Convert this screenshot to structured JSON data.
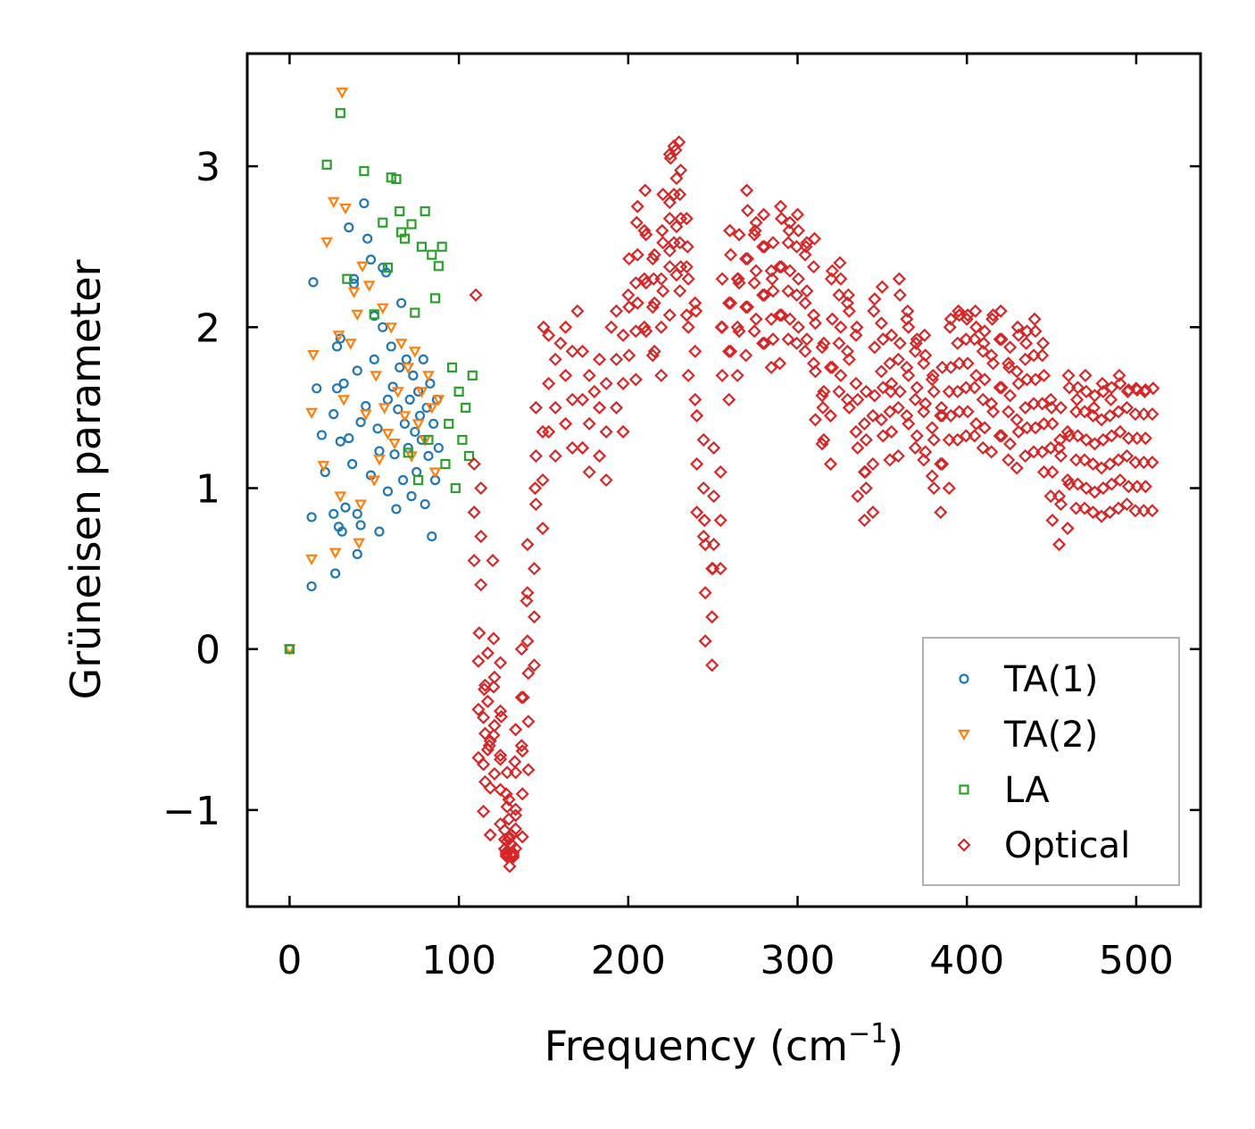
{
  "chart_data": {
    "type": "scatter",
    "xlabel": "Frequency (cm",
    "xlabel_sup": "−1",
    "xlabel_end": ")",
    "ylabel": "Grüneisen parameter",
    "xlim": [
      -25,
      538
    ],
    "ylim": [
      -1.6,
      3.7
    ],
    "xticks": [
      0,
      100,
      200,
      300,
      400,
      500
    ],
    "yticks": [
      -1,
      0,
      1,
      2,
      3
    ],
    "xtick_labels": [
      "0",
      "100",
      "200",
      "300",
      "400",
      "500"
    ],
    "ytick_labels": [
      "−1",
      "0",
      "1",
      "2",
      "3"
    ],
    "legend_position": "lower-right",
    "series": [
      {
        "name": "TA(1)",
        "marker": "circle",
        "color": "#1f77b4",
        "points": [
          [
            0,
            0
          ],
          [
            13,
            0.39
          ],
          [
            13,
            0.82
          ],
          [
            14,
            2.28
          ],
          [
            16,
            1.62
          ],
          [
            19,
            1.33
          ],
          [
            21,
            1.1
          ],
          [
            26,
            0.84
          ],
          [
            26,
            1.46
          ],
          [
            27,
            0.47
          ],
          [
            28,
            1.88
          ],
          [
            28,
            1.62
          ],
          [
            29,
            0.76
          ],
          [
            30,
            1.29
          ],
          [
            30,
            1.93
          ],
          [
            31,
            0.73
          ],
          [
            32,
            1.65
          ],
          [
            33,
            0.88
          ],
          [
            35,
            2.62
          ],
          [
            35,
            1.31
          ],
          [
            37,
            1.15
          ],
          [
            38,
            2.3
          ],
          [
            38,
            2.27
          ],
          [
            40,
            0.84
          ],
          [
            40,
            0.59
          ],
          [
            40,
            1.73
          ],
          [
            42,
            1.41
          ],
          [
            42,
            0.77
          ],
          [
            44,
            2.77
          ],
          [
            45,
            1.51
          ],
          [
            46,
            2.55
          ],
          [
            48,
            2.42
          ],
          [
            48,
            1.08
          ],
          [
            50,
            1.8
          ],
          [
            50,
            2.07
          ],
          [
            52,
            1.37
          ],
          [
            53,
            1.23
          ],
          [
            53,
            0.73
          ],
          [
            55,
            2.0
          ],
          [
            55,
            2.37
          ],
          [
            57,
            2.34
          ],
          [
            58,
            1.55
          ],
          [
            58,
            0.98
          ],
          [
            60,
            1.88
          ],
          [
            61,
            1.63
          ],
          [
            62,
            1.21
          ],
          [
            63,
            0.87
          ],
          [
            64,
            1.49
          ],
          [
            65,
            1.75
          ],
          [
            66,
            2.15
          ],
          [
            67,
            1.05
          ],
          [
            68,
            1.4
          ],
          [
            69,
            1.8
          ],
          [
            70,
            1.25
          ],
          [
            71,
            1.55
          ],
          [
            72,
            0.95
          ],
          [
            73,
            1.7
          ],
          [
            74,
            1.35
          ],
          [
            75,
            1.1
          ],
          [
            76,
            1.6
          ],
          [
            77,
            1.45
          ],
          [
            78,
            1.3
          ],
          [
            79,
            1.8
          ],
          [
            80,
            0.9
          ],
          [
            81,
            1.5
          ],
          [
            82,
            1.2
          ],
          [
            83,
            1.65
          ],
          [
            84,
            0.7
          ],
          [
            85,
            1.4
          ],
          [
            86,
            1.05
          ],
          [
            87,
            1.55
          ],
          [
            88,
            1.25
          ]
        ]
      },
      {
        "name": "TA(2)",
        "marker": "triangle",
        "color": "#ff7f0e",
        "points": [
          [
            0,
            0
          ],
          [
            13,
            0.56
          ],
          [
            13,
            1.47
          ],
          [
            14,
            1.83
          ],
          [
            20,
            1.14
          ],
          [
            22,
            2.53
          ],
          [
            26,
            2.78
          ],
          [
            27,
            0.6
          ],
          [
            29,
            1.95
          ],
          [
            30,
            0.95
          ],
          [
            31,
            3.46
          ],
          [
            32,
            1.55
          ],
          [
            33,
            2.74
          ],
          [
            36,
            1.9
          ],
          [
            38,
            2.22
          ],
          [
            40,
            2.08
          ],
          [
            41,
            0.66
          ],
          [
            42,
            0.9
          ],
          [
            43,
            2.38
          ],
          [
            45,
            1.46
          ],
          [
            47,
            2.26
          ],
          [
            50,
            1.05
          ],
          [
            51,
            1.7
          ],
          [
            53,
            1.18
          ],
          [
            55,
            2.12
          ],
          [
            56,
            1.5
          ],
          [
            58,
            1.34
          ],
          [
            60,
            2.0
          ],
          [
            62,
            1.28
          ],
          [
            64,
            1.6
          ],
          [
            66,
            1.9
          ],
          [
            68,
            1.45
          ],
          [
            70,
            1.75
          ],
          [
            72,
            1.2
          ],
          [
            74,
            1.85
          ],
          [
            76,
            1.4
          ],
          [
            78,
            1.6
          ],
          [
            80,
            1.3
          ],
          [
            82,
            1.7
          ],
          [
            84,
            1.5
          ],
          [
            86,
            1.1
          ],
          [
            88,
            1.55
          ]
        ]
      },
      {
        "name": "LA",
        "marker": "square",
        "color": "#2ca02c",
        "points": [
          [
            0,
            0
          ],
          [
            22,
            3.01
          ],
          [
            30,
            3.33
          ],
          [
            34,
            2.3
          ],
          [
            44,
            2.97
          ],
          [
            50,
            2.08
          ],
          [
            55,
            2.65
          ],
          [
            58,
            2.37
          ],
          [
            60,
            2.93
          ],
          [
            63,
            2.92
          ],
          [
            65,
            2.72
          ],
          [
            66,
            2.59
          ],
          [
            68,
            2.55
          ],
          [
            70,
            1.22
          ],
          [
            72,
            2.64
          ],
          [
            74,
            2.09
          ],
          [
            76,
            1.05
          ],
          [
            78,
            2.5
          ],
          [
            80,
            2.72
          ],
          [
            82,
            1.3
          ],
          [
            84,
            2.45
          ],
          [
            86,
            2.18
          ],
          [
            88,
            2.38
          ],
          [
            90,
            2.5
          ],
          [
            92,
            1.15
          ],
          [
            94,
            1.4
          ],
          [
            96,
            1.75
          ],
          [
            98,
            1.0
          ],
          [
            100,
            1.6
          ],
          [
            102,
            1.3
          ],
          [
            104,
            1.5
          ],
          [
            106,
            1.2
          ],
          [
            108,
            1.7
          ]
        ]
      },
      {
        "name": "Optical",
        "marker": "diamond",
        "color": "#d62728",
        "points": [
          [
            110,
            2.2
          ],
          [
            112,
            0.1
          ],
          [
            115,
            -0.25
          ],
          [
            118,
            -0.6
          ],
          [
            120,
            0.55
          ],
          [
            125,
            -0.42
          ],
          [
            128,
            -0.9
          ],
          [
            130,
            -1.35
          ],
          [
            130,
            -1.17
          ],
          [
            133,
            -0.7
          ],
          [
            138,
            -0.3
          ],
          [
            140,
            0.3
          ],
          [
            145,
            1.0
          ],
          [
            150,
            2.0
          ],
          [
            160,
            1.9
          ],
          [
            170,
            2.1
          ],
          [
            180,
            1.6
          ],
          [
            190,
            2.0
          ],
          [
            200,
            2.2
          ],
          [
            205,
            2.65
          ],
          [
            210,
            2.85
          ],
          [
            215,
            2.3
          ],
          [
            220,
            2.6
          ],
          [
            225,
            3.05
          ],
          [
            228,
            3.1
          ],
          [
            230,
            3.15
          ],
          [
            235,
            2.5
          ],
          [
            240,
            2.1
          ],
          [
            245,
            0.8
          ],
          [
            250,
            0.5
          ],
          [
            255,
            2.0
          ],
          [
            260,
            2.6
          ],
          [
            265,
            2.3
          ],
          [
            270,
            2.85
          ],
          [
            275,
            2.6
          ],
          [
            280,
            2.7
          ],
          [
            285,
            2.3
          ],
          [
            290,
            2.75
          ],
          [
            295,
            2.6
          ],
          [
            300,
            2.7
          ],
          [
            305,
            2.5
          ],
          [
            310,
            2.55
          ],
          [
            315,
            1.5
          ],
          [
            320,
            2.3
          ],
          [
            325,
            2.4
          ],
          [
            330,
            2.2
          ],
          [
            335,
            2.0
          ],
          [
            340,
            1.1
          ],
          [
            345,
            2.1
          ],
          [
            350,
            2.25
          ],
          [
            355,
            1.6
          ],
          [
            360,
            2.3
          ],
          [
            365,
            2.1
          ],
          [
            370,
            1.9
          ],
          [
            375,
            1.95
          ],
          [
            380,
            1.7
          ],
          [
            385,
            1.5
          ],
          [
            390,
            2.0
          ],
          [
            395,
            2.1
          ],
          [
            400,
            2.05
          ],
          [
            405,
            2.1
          ],
          [
            410,
            1.9
          ],
          [
            415,
            2.05
          ],
          [
            420,
            2.1
          ],
          [
            425,
            1.75
          ],
          [
            430,
            2.0
          ],
          [
            435,
            1.9
          ],
          [
            440,
            2.05
          ],
          [
            445,
            1.9
          ],
          [
            450,
            1.5
          ],
          [
            455,
            1.3
          ],
          [
            460,
            1.7
          ],
          [
            465,
            1.55
          ],
          [
            470,
            1.7
          ],
          [
            475,
            1.5
          ],
          [
            480,
            1.65
          ],
          [
            485,
            1.55
          ],
          [
            490,
            1.7
          ],
          [
            495,
            1.6
          ],
          [
            500,
            1.62
          ],
          [
            505,
            1.6
          ],
          [
            510,
            1.62
          ]
        ]
      }
    ]
  }
}
